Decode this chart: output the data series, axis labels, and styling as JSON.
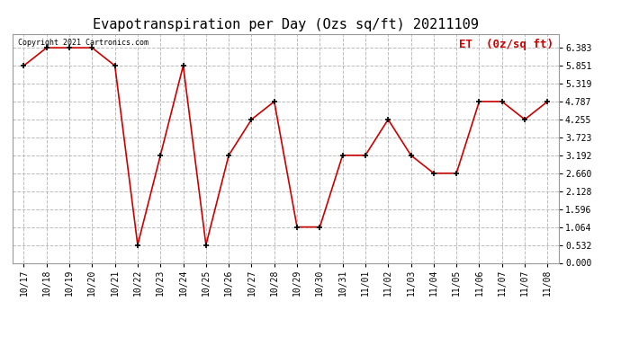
{
  "title": "Evapotranspiration per Day (Ozs sq/ft) 20211109",
  "copyright_text": "Copyright 2021 Cartronics.com",
  "legend_label": "ET  (0z/sq ft)",
  "background_color": "#ffffff",
  "plot_bg_color": "#ffffff",
  "line_color": "#cc0000",
  "marker_color": "#000000",
  "grid_color": "#bbbbbb",
  "x_labels": [
    "10/17",
    "10/18",
    "10/19",
    "10/20",
    "10/21",
    "10/22",
    "10/23",
    "10/24",
    "10/25",
    "10/26",
    "10/27",
    "10/28",
    "10/29",
    "10/30",
    "10/31",
    "11/01",
    "11/02",
    "11/03",
    "11/04",
    "11/05",
    "11/06",
    "11/07",
    "11/07",
    "11/08"
  ],
  "y_values": [
    5.851,
    6.383,
    6.383,
    6.383,
    5.851,
    0.532,
    3.192,
    5.851,
    0.532,
    3.192,
    4.255,
    4.787,
    1.064,
    1.064,
    3.192,
    3.192,
    4.255,
    3.192,
    2.66,
    2.66,
    4.787,
    4.787,
    4.255,
    4.787
  ],
  "yticks": [
    0.0,
    0.532,
    1.064,
    1.596,
    2.128,
    2.66,
    3.192,
    3.723,
    4.255,
    4.787,
    5.319,
    5.851,
    6.383
  ],
  "ylim": [
    0.0,
    6.8
  ],
  "title_fontsize": 11,
  "tick_fontsize": 7,
  "legend_fontsize": 9,
  "copyright_fontsize": 6
}
